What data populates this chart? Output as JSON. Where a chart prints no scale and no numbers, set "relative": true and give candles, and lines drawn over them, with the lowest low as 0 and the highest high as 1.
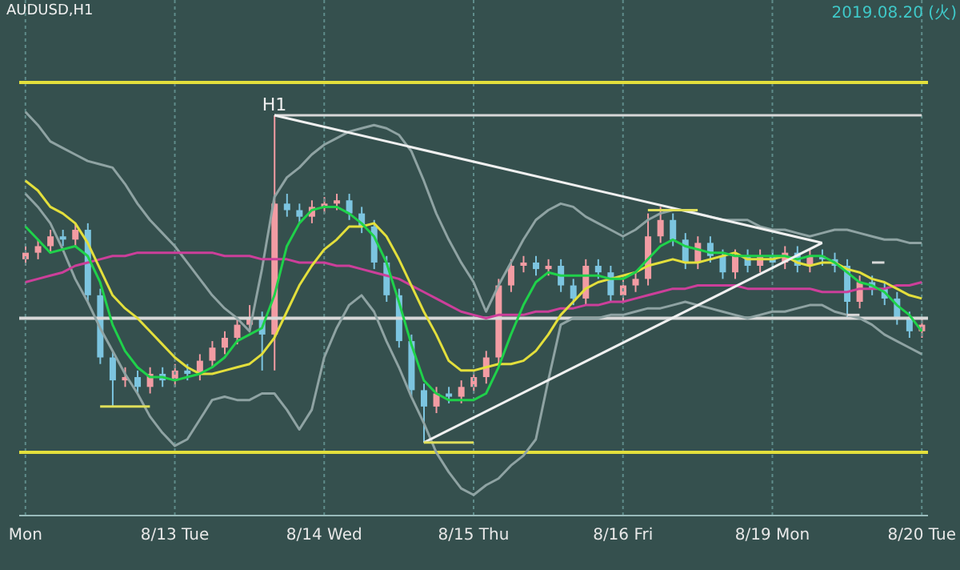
{
  "chart_data": {
    "type": "candlestick",
    "title": "AUDUSD,H1",
    "subtitle": "2019.08.20 (火)",
    "relative": true,
    "grid": "x",
    "categories": [
      "Mon",
      null,
      null,
      null,
      null,
      null,
      null,
      null,
      null,
      null,
      null,
      null,
      "8/13 Tue",
      null,
      null,
      null,
      null,
      null,
      null,
      null,
      null,
      null,
      null,
      null,
      "8/14 Wed",
      null,
      null,
      null,
      null,
      null,
      null,
      null,
      null,
      null,
      null,
      null,
      "8/15 Thu",
      null,
      null,
      null,
      null,
      null,
      null,
      null,
      null,
      null,
      null,
      null,
      "8/16 Fri",
      null,
      null,
      null,
      null,
      null,
      null,
      null,
      null,
      null,
      null,
      null,
      "8/19 Mon",
      null,
      null,
      null,
      null,
      null,
      null,
      null,
      null,
      null,
      null,
      null,
      "8/20 Tue"
    ],
    "ohlc": [
      [
        0.56,
        0.6,
        0.54,
        0.58
      ],
      [
        0.58,
        0.62,
        0.56,
        0.6
      ],
      [
        0.6,
        0.65,
        0.58,
        0.63
      ],
      [
        0.63,
        0.65,
        0.6,
        0.62
      ],
      [
        0.62,
        0.67,
        0.6,
        0.65
      ],
      [
        0.65,
        0.67,
        0.43,
        0.45
      ],
      [
        0.45,
        0.47,
        0.24,
        0.26
      ],
      [
        0.26,
        0.28,
        0.11,
        0.19
      ],
      [
        0.19,
        0.23,
        0.17,
        0.2
      ],
      [
        0.2,
        0.22,
        0.15,
        0.17
      ],
      [
        0.17,
        0.23,
        0.15,
        0.21
      ],
      [
        0.21,
        0.23,
        0.17,
        0.19
      ],
      [
        0.19,
        0.24,
        0.17,
        0.22
      ],
      [
        0.22,
        0.24,
        0.19,
        0.21
      ],
      [
        0.21,
        0.27,
        0.19,
        0.25
      ],
      [
        0.25,
        0.31,
        0.23,
        0.29
      ],
      [
        0.29,
        0.34,
        0.27,
        0.32
      ],
      [
        0.32,
        0.38,
        0.3,
        0.36
      ],
      [
        0.36,
        0.42,
        0.34,
        0.38
      ],
      [
        0.38,
        0.4,
        0.22,
        0.33
      ],
      [
        0.33,
        1,
        0.22,
        0.73
      ],
      [
        0.73,
        0.76,
        0.69,
        0.71
      ],
      [
        0.71,
        0.73,
        0.67,
        0.69
      ],
      [
        0.69,
        0.74,
        0.67,
        0.72
      ],
      [
        0.72,
        0.75,
        0.7,
        0.73
      ],
      [
        0.73,
        0.76,
        0.71,
        0.74
      ],
      [
        0.74,
        0.76,
        0.68,
        0.7
      ],
      [
        0.7,
        0.72,
        0.64,
        0.66
      ],
      [
        0.66,
        0.68,
        0.53,
        0.55
      ],
      [
        0.55,
        0.57,
        0.43,
        0.45
      ],
      [
        0.45,
        0.47,
        0.29,
        0.31
      ],
      [
        0.31,
        0.33,
        0.14,
        0.16
      ],
      [
        0.16,
        0.18,
        0,
        0.11
      ],
      [
        0.11,
        0.17,
        0.09,
        0.15
      ],
      [
        0.15,
        0.17,
        0.12,
        0.14
      ],
      [
        0.14,
        0.19,
        0.12,
        0.17
      ],
      [
        0.17,
        0.22,
        0.15,
        0.2
      ],
      [
        0.2,
        0.28,
        0.18,
        0.26
      ],
      [
        0.26,
        0.5,
        0.24,
        0.48
      ],
      [
        0.48,
        0.56,
        0.46,
        0.54
      ],
      [
        0.54,
        0.57,
        0.52,
        0.55
      ],
      [
        0.55,
        0.57,
        0.51,
        0.53
      ],
      [
        0.53,
        0.56,
        0.51,
        0.54
      ],
      [
        0.54,
        0.56,
        0.46,
        0.48
      ],
      [
        0.48,
        0.5,
        0.42,
        0.44
      ],
      [
        0.44,
        0.56,
        0.42,
        0.54
      ],
      [
        0.54,
        0.56,
        0.5,
        0.52
      ],
      [
        0.52,
        0.54,
        0.43,
        0.45
      ],
      [
        0.45,
        0.5,
        0.43,
        0.48
      ],
      [
        0.48,
        0.52,
        0.46,
        0.5
      ],
      [
        0.5,
        0.7,
        0.48,
        0.63
      ],
      [
        0.63,
        0.72,
        0.61,
        0.68
      ],
      [
        0.68,
        0.7,
        0.6,
        0.62
      ],
      [
        0.62,
        0.64,
        0.53,
        0.55
      ],
      [
        0.55,
        0.63,
        0.53,
        0.61
      ],
      [
        0.61,
        0.63,
        0.55,
        0.57
      ],
      [
        0.57,
        0.59,
        0.5,
        0.52
      ],
      [
        0.52,
        0.59,
        0.5,
        0.57
      ],
      [
        0.57,
        0.59,
        0.52,
        0.54
      ],
      [
        0.54,
        0.59,
        0.52,
        0.57
      ],
      [
        0.57,
        0.59,
        0.53,
        0.55
      ],
      [
        0.55,
        0.6,
        0.53,
        0.58
      ],
      [
        0.58,
        0.6,
        0.52,
        0.54
      ],
      [
        0.54,
        0.59,
        0.52,
        0.57
      ],
      [
        0.57,
        0.59,
        0.54,
        0.56
      ],
      [
        0.56,
        0.58,
        0.52,
        0.54
      ],
      [
        0.54,
        0.56,
        0.38,
        0.43
      ],
      [
        0.43,
        0.51,
        0.41,
        0.49
      ],
      [
        0.49,
        0.51,
        0.45,
        0.47
      ],
      [
        0.47,
        0.49,
        0.42,
        0.44
      ],
      [
        0.44,
        0.46,
        0.36,
        0.38
      ],
      [
        0.38,
        0.4,
        0.32,
        0.34
      ],
      [
        0.34,
        0.38,
        0.32,
        0.36
      ]
    ],
    "colors": [
      "#f29ca3",
      "#f29ca3",
      "#f29ca3",
      "#7cc5e0",
      "#f29ca3",
      "#7cc5e0",
      "#7cc5e0",
      "#7cc5e0",
      "#f29ca3",
      "#7cc5e0",
      "#f29ca3",
      "#7cc5e0",
      "#f29ca3",
      "#7cc5e0",
      "#f29ca3",
      "#f29ca3",
      "#f29ca3",
      "#f29ca3",
      "#f29ca3",
      "#7cc5e0",
      "#f29ca3",
      "#7cc5e0",
      "#7cc5e0",
      "#f29ca3",
      "#f29ca3",
      "#f29ca3",
      "#7cc5e0",
      "#7cc5e0",
      "#7cc5e0",
      "#7cc5e0",
      "#7cc5e0",
      "#7cc5e0",
      "#7cc5e0",
      "#f29ca3",
      "#7cc5e0",
      "#f29ca3",
      "#f29ca3",
      "#f29ca3",
      "#f29ca3",
      "#f29ca3",
      "#f29ca3",
      "#7cc5e0",
      "#f29ca3",
      "#7cc5e0",
      "#7cc5e0",
      "#f29ca3",
      "#7cc5e0",
      "#7cc5e0",
      "#f29ca3",
      "#f29ca3",
      "#f29ca3",
      "#f29ca3",
      "#7cc5e0",
      "#7cc5e0",
      "#f29ca3",
      "#7cc5e0",
      "#7cc5e0",
      "#f29ca3",
      "#7cc5e0",
      "#f29ca3",
      "#7cc5e0",
      "#f29ca3",
      "#7cc5e0",
      "#f29ca3",
      "#7cc5e0",
      "#7cc5e0",
      "#7cc5e0",
      "#f29ca3",
      "#7cc5e0",
      "#7cc5e0",
      "#7cc5e0",
      "#7cc5e0",
      "#f29ca3"
    ],
    "series": [
      {
        "type": "line",
        "color": "#8fa3a3",
        "values": [
          1.01,
          0.97,
          0.92,
          0.9,
          0.88,
          0.86,
          0.85,
          0.84,
          0.79,
          0.73,
          0.68,
          0.64,
          0.6,
          0.55,
          0.5,
          0.45,
          0.41,
          0.38,
          0.34,
          0.53,
          0.75,
          0.81,
          0.84,
          0.88,
          0.91,
          0.93,
          0.95,
          0.96,
          0.97,
          0.96,
          0.94,
          0.89,
          0.8,
          0.7,
          0.62,
          0.55,
          0.49,
          0.4,
          0.48,
          0.55,
          0.62,
          0.68,
          0.71,
          0.73,
          0.72,
          0.69,
          0.67,
          0.65,
          0.63,
          0.65,
          0.68,
          0.7,
          0.71,
          0.71,
          0.7,
          0.69,
          0.68,
          0.68,
          0.68,
          0.66,
          0.65,
          0.65,
          0.64,
          0.63,
          0.64,
          0.65,
          0.65,
          0.64,
          0.63,
          0.62,
          0.62,
          0.61,
          0.61
        ]
      },
      {
        "type": "line",
        "color": "#8fa3a3",
        "values": [
          0.76,
          0.72,
          0.67,
          0.59,
          0.5,
          0.43,
          0.35,
          0.28,
          0.21,
          0.15,
          0.08,
          0.03,
          -0.01,
          0.01,
          0.07,
          0.13,
          0.14,
          0.13,
          0.13,
          0.15,
          0.15,
          0.1,
          0.04,
          0.1,
          0.26,
          0.35,
          0.42,
          0.45,
          0.4,
          0.31,
          0.23,
          0.14,
          0.06,
          -0.03,
          -0.09,
          -0.14,
          -0.16,
          -0.13,
          -0.11,
          -0.07,
          -0.04,
          0.01,
          0.19,
          0.36,
          0.38,
          0.38,
          0.38,
          0.39,
          0.39,
          0.4,
          0.41,
          0.41,
          0.42,
          0.43,
          0.42,
          0.41,
          0.4,
          0.39,
          0.38,
          0.39,
          0.4,
          0.4,
          0.41,
          0.42,
          0.42,
          0.4,
          0.39,
          0.38,
          0.36,
          0.33,
          0.31,
          0.29,
          0.27
        ]
      },
      {
        "type": "line",
        "color": "#cc3f9a",
        "values": [
          0.49,
          0.5,
          0.51,
          0.52,
          0.54,
          0.55,
          0.56,
          0.57,
          0.57,
          0.58,
          0.58,
          0.58,
          0.58,
          0.58,
          0.58,
          0.58,
          0.57,
          0.57,
          0.57,
          0.56,
          0.56,
          0.56,
          0.55,
          0.55,
          0.55,
          0.54,
          0.54,
          0.53,
          0.52,
          0.51,
          0.5,
          0.48,
          0.46,
          0.44,
          0.42,
          0.4,
          0.39,
          0.38,
          0.39,
          0.39,
          0.39,
          0.4,
          0.4,
          0.41,
          0.41,
          0.42,
          0.42,
          0.43,
          0.43,
          0.44,
          0.45,
          0.46,
          0.47,
          0.47,
          0.48,
          0.48,
          0.48,
          0.48,
          0.47,
          0.47,
          0.47,
          0.47,
          0.47,
          0.47,
          0.46,
          0.46,
          0.46,
          0.47,
          0.47,
          0.47,
          0.48,
          0.48,
          0.49
        ]
      },
      {
        "type": "line",
        "color": "#e3df3c",
        "values": [
          0.8,
          0.77,
          0.72,
          0.7,
          0.67,
          0.61,
          0.53,
          0.45,
          0.41,
          0.38,
          0.34,
          0.3,
          0.26,
          0.23,
          0.21,
          0.21,
          0.22,
          0.23,
          0.24,
          0.27,
          0.32,
          0.4,
          0.48,
          0.54,
          0.59,
          0.62,
          0.66,
          0.66,
          0.67,
          0.63,
          0.56,
          0.48,
          0.4,
          0.33,
          0.25,
          0.22,
          0.22,
          0.23,
          0.24,
          0.24,
          0.25,
          0.28,
          0.33,
          0.39,
          0.43,
          0.47,
          0.49,
          0.5,
          0.51,
          0.52,
          0.54,
          0.55,
          0.56,
          0.55,
          0.55,
          0.56,
          0.57,
          0.58,
          0.56,
          0.56,
          0.56,
          0.57,
          0.55,
          0.54,
          0.55,
          0.55,
          0.53,
          0.52,
          0.5,
          0.49,
          0.47,
          0.45,
          0.44
        ]
      },
      {
        "type": "line",
        "color": "#1fd14a",
        "values": [
          0.66,
          0.62,
          0.58,
          0.59,
          0.6,
          0.57,
          0.49,
          0.36,
          0.28,
          0.23,
          0.2,
          0.2,
          0.19,
          0.2,
          0.21,
          0.23,
          0.26,
          0.31,
          0.33,
          0.35,
          0.45,
          0.6,
          0.67,
          0.71,
          0.72,
          0.72,
          0.7,
          0.67,
          0.63,
          0.55,
          0.43,
          0.3,
          0.19,
          0.15,
          0.13,
          0.13,
          0.13,
          0.15,
          0.23,
          0.33,
          0.42,
          0.49,
          0.52,
          0.51,
          0.51,
          0.51,
          0.51,
          0.5,
          0.5,
          0.52,
          0.56,
          0.6,
          0.62,
          0.6,
          0.59,
          0.58,
          0.58,
          0.57,
          0.57,
          0.57,
          0.57,
          0.57,
          0.56,
          0.57,
          0.57,
          0.55,
          0.52,
          0.49,
          0.48,
          0.46,
          0.42,
          0.39,
          0.34
        ]
      },
      {
        "type": "line",
        "color": "#d8d8d8",
        "values": [
          null,
          null,
          null,
          null,
          null,
          null,
          null,
          null,
          null,
          null,
          null,
          null,
          null,
          null,
          null,
          null,
          null,
          null,
          null,
          null,
          1,
          1,
          1,
          1,
          1,
          1,
          1,
          1,
          1,
          1,
          1,
          1,
          1,
          1,
          1,
          1,
          1,
          1,
          1,
          1,
          1,
          1,
          1,
          1,
          1,
          1,
          1,
          1,
          1,
          1,
          1,
          1,
          1,
          1,
          1,
          1,
          1,
          1,
          1,
          1,
          1,
          1,
          1,
          1,
          1,
          1,
          1,
          1,
          1,
          1,
          1,
          1,
          1
        ]
      },
      {
        "type": "line",
        "color": "#f0f0f0",
        "values": [
          null,
          null,
          null,
          null,
          null,
          null,
          null,
          null,
          null,
          null,
          null,
          null,
          null,
          null,
          null,
          null,
          null,
          null,
          null,
          null,
          1,
          null,
          null,
          null,
          null,
          null,
          null,
          null,
          null,
          null,
          null,
          null,
          null,
          null,
          null,
          null,
          null,
          null,
          null,
          null,
          null,
          null,
          null,
          null,
          null,
          null,
          null,
          null,
          null,
          null,
          null,
          null,
          null,
          null,
          null,
          null,
          null,
          null,
          null,
          null,
          null,
          null,
          null,
          null,
          0.61,
          null,
          null,
          null,
          null,
          null,
          null,
          null,
          null
        ]
      },
      {
        "type": "line",
        "color": "#f0f0f0",
        "values": [
          null,
          null,
          null,
          null,
          null,
          null,
          null,
          null,
          null,
          null,
          null,
          null,
          null,
          null,
          null,
          null,
          null,
          null,
          null,
          null,
          null,
          null,
          null,
          null,
          null,
          null,
          null,
          null,
          null,
          null,
          null,
          null,
          0,
          null,
          null,
          null,
          null,
          null,
          null,
          null,
          null,
          null,
          null,
          null,
          null,
          null,
          null,
          null,
          null,
          null,
          null,
          null,
          null,
          null,
          null,
          null,
          null,
          null,
          null,
          null,
          null,
          null,
          null,
          null,
          0.61,
          null,
          null,
          null,
          null,
          null,
          null,
          null,
          null
        ]
      },
      {
        "type": "line",
        "color": "#dede5a",
        "values": [
          null,
          null,
          null,
          null,
          null,
          null,
          0.11,
          0.11,
          0.11,
          0.11,
          0.11,
          null,
          null,
          null,
          null,
          null,
          null,
          null,
          null,
          null,
          null,
          null,
          null,
          null,
          null,
          null,
          null,
          null,
          null,
          null,
          null,
          null,
          null,
          null,
          null,
          null,
          null,
          null,
          null,
          null,
          null,
          null,
          null,
          null,
          null,
          null,
          null,
          null,
          null,
          null,
          null,
          null,
          null,
          null,
          null,
          null,
          null,
          null,
          null,
          null,
          null,
          null,
          null,
          null,
          null,
          null,
          null,
          null,
          null,
          null,
          null,
          null,
          null
        ]
      },
      {
        "type": "line",
        "color": "#dede5a",
        "values": [
          null,
          null,
          null,
          null,
          null,
          null,
          null,
          null,
          null,
          null,
          null,
          null,
          null,
          null,
          null,
          null,
          null,
          null,
          null,
          null,
          null,
          null,
          null,
          null,
          null,
          null,
          null,
          null,
          null,
          null,
          null,
          null,
          0,
          0,
          0,
          0,
          0,
          null,
          null,
          null,
          null,
          null,
          null,
          null,
          null,
          null,
          null,
          null,
          null,
          null,
          null,
          null,
          null,
          null,
          null,
          null,
          null,
          null,
          null,
          null,
          null,
          null,
          null,
          null,
          null,
          null,
          null,
          null,
          null,
          null,
          null,
          null,
          null
        ]
      },
      {
        "type": "line",
        "color": "#dede5a",
        "values": [
          null,
          null,
          null,
          null,
          null,
          null,
          null,
          null,
          null,
          null,
          null,
          null,
          null,
          null,
          null,
          null,
          null,
          null,
          null,
          null,
          null,
          null,
          null,
          null,
          null,
          null,
          null,
          null,
          null,
          null,
          null,
          null,
          null,
          null,
          null,
          null,
          null,
          null,
          null,
          null,
          null,
          null,
          null,
          null,
          null,
          null,
          null,
          null,
          null,
          null,
          0.71,
          0.71,
          0.71,
          0.71,
          0.71,
          null,
          null,
          null,
          null,
          null,
          null,
          null,
          null,
          null,
          null,
          null,
          null,
          null,
          null,
          null,
          null,
          null,
          null
        ]
      },
      {
        "type": "line",
        "color": "#d8d8d8",
        "values": [
          null,
          null,
          null,
          null,
          null,
          null,
          null,
          null,
          null,
          null,
          null,
          null,
          null,
          null,
          null,
          null,
          null,
          null,
          null,
          null,
          null,
          null,
          null,
          null,
          null,
          null,
          null,
          null,
          null,
          null,
          null,
          null,
          null,
          null,
          null,
          null,
          null,
          null,
          null,
          null,
          null,
          null,
          null,
          null,
          null,
          null,
          null,
          null,
          null,
          null,
          null,
          null,
          null,
          null,
          null,
          null,
          null,
          null,
          null,
          null,
          null,
          null,
          null,
          null,
          null,
          null,
          0.39,
          0.39,
          null,
          null,
          null,
          null,
          null
        ]
      },
      {
        "type": "line",
        "color": "#d8d8d8",
        "values": [
          null,
          null,
          null,
          null,
          null,
          null,
          null,
          null,
          null,
          null,
          null,
          null,
          null,
          null,
          null,
          null,
          null,
          null,
          null,
          null,
          null,
          null,
          null,
          null,
          null,
          null,
          null,
          null,
          null,
          null,
          null,
          null,
          null,
          null,
          null,
          null,
          null,
          null,
          null,
          null,
          null,
          null,
          null,
          null,
          null,
          null,
          null,
          null,
          null,
          null,
          null,
          null,
          null,
          null,
          null,
          null,
          null,
          null,
          null,
          null,
          null,
          null,
          null,
          null,
          null,
          null,
          null,
          null,
          0.55,
          0.55,
          null,
          null,
          null
        ]
      }
    ],
    "ref_lines": [
      {
        "axis": "y",
        "value": 1.1,
        "color": "#e3df3c"
      },
      {
        "axis": "y",
        "value": 0.38,
        "color": "#d8d8d8"
      },
      {
        "axis": "y",
        "value": -0.03,
        "color": "#e3df3c"
      }
    ],
    "annotations": [
      {
        "text": "H1",
        "y": 1
      }
    ]
  }
}
